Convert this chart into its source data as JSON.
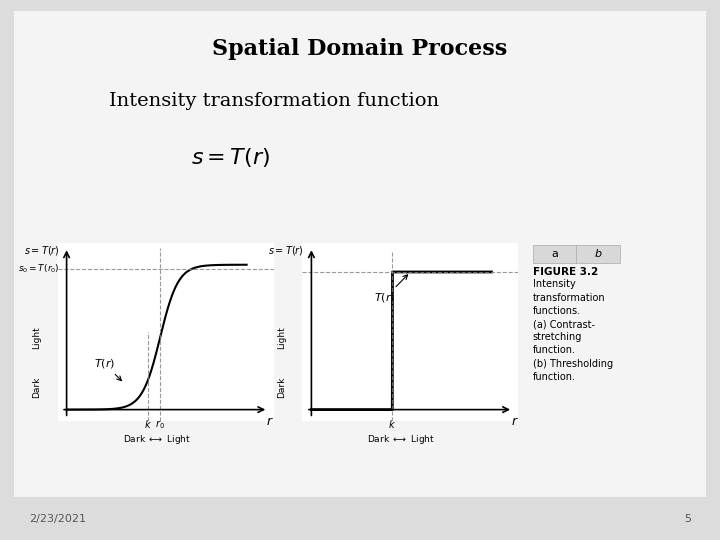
{
  "title": "Spatial Domain Process",
  "subtitle": "Intensity transformation function",
  "formula": "$s = T(r)$",
  "bg_color": "#f0f0f0",
  "slide_bg": "#e8e8e8",
  "date_text": "2/23/2021",
  "page_num": "5",
  "figure_caption_title": "FIGURE 3.2",
  "figure_caption": "Intensity\ntransformation\nfunctions.\n(a) Contrast-\nstretching\nfunction.\n(b) Thresholding\nfunction.",
  "ab_labels": [
    "a",
    "b"
  ]
}
